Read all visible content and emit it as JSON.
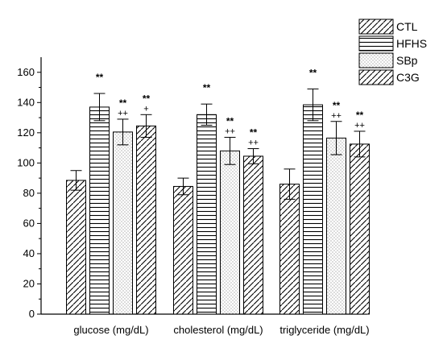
{
  "chart_data": {
    "type": "bar",
    "categories": [
      "glucose (mg/dL)",
      "cholesterol (mg/dL)",
      "triglyceride (mg/dL)"
    ],
    "series": [
      {
        "name": "CTL",
        "values": [
          88.5,
          84.5,
          86.0
        ],
        "errors": [
          6.5,
          5.5,
          10.0
        ],
        "pattern": "diagonal",
        "annotation_top": [
          "",
          "",
          ""
        ],
        "annotation_bottom": [
          "",
          "",
          ""
        ]
      },
      {
        "name": "HFHS",
        "values": [
          137.0,
          132.0,
          138.5
        ],
        "errors": [
          9.0,
          7.0,
          10.5
        ],
        "pattern": "horizontal",
        "annotation_top": [
          "**",
          "**",
          "**"
        ],
        "annotation_bottom": [
          "",
          "",
          ""
        ]
      },
      {
        "name": "SBp",
        "values": [
          120.5,
          108.0,
          116.5
        ],
        "errors": [
          8.5,
          9.0,
          11.0
        ],
        "pattern": "dotted",
        "annotation_top": [
          "**",
          "**",
          "**"
        ],
        "annotation_bottom": [
          "++",
          "++",
          "++"
        ]
      },
      {
        "name": "C3G",
        "values": [
          124.5,
          104.5,
          112.5
        ],
        "errors": [
          7.5,
          5.0,
          8.5
        ],
        "pattern": "diagonal",
        "annotation_top": [
          "**",
          "**",
          "**"
        ],
        "annotation_bottom": [
          "+",
          "++",
          "++"
        ]
      }
    ],
    "ylim": [
      0,
      170
    ],
    "yticks": [
      0,
      20,
      40,
      60,
      80,
      100,
      120,
      140,
      160
    ],
    "legend_position": "top-right",
    "grid": false
  }
}
